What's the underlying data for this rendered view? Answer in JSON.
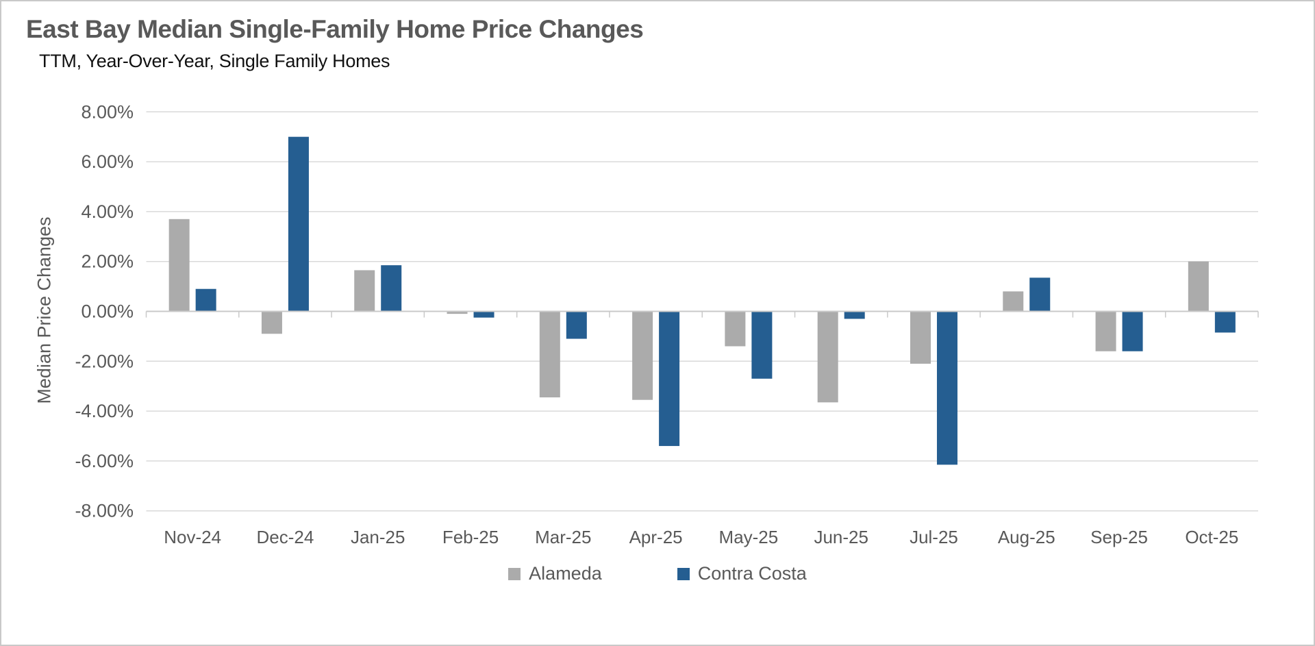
{
  "title": "East Bay Median Single-Family Home Price Changes",
  "subtitle": "TTM, Year-Over-Year, Single Family Homes",
  "chart_data": {
    "type": "bar",
    "title": "East Bay Median Single-Family Home Price Changes",
    "subtitle": "TTM, Year-Over-Year, Single Family Homes",
    "xlabel": "",
    "ylabel": "Median Price Changes",
    "ylim": [
      -8,
      8
    ],
    "grid": "horizontal",
    "legend_position": "bottom",
    "y_ticks": [
      {
        "value": 8,
        "label": "8.00%"
      },
      {
        "value": 6,
        "label": "6.00%"
      },
      {
        "value": 4,
        "label": "4.00%"
      },
      {
        "value": 2,
        "label": "2.00%"
      },
      {
        "value": 0,
        "label": "0.00%"
      },
      {
        "value": -2,
        "label": "-2.00%"
      },
      {
        "value": -4,
        "label": "-4.00%"
      },
      {
        "value": -6,
        "label": "-6.00%"
      },
      {
        "value": -8,
        "label": "-8.00%"
      }
    ],
    "categories": [
      "Nov-24",
      "Dec-24",
      "Jan-25",
      "Feb-25",
      "Mar-25",
      "Apr-25",
      "May-25",
      "Jun-25",
      "Jul-25",
      "Aug-25",
      "Sep-25",
      "Oct-25"
    ],
    "series": [
      {
        "name": "Alameda",
        "color": "#ABABAB",
        "values": [
          3.7,
          -0.9,
          1.65,
          -0.1,
          -3.45,
          -3.55,
          -1.4,
          -3.65,
          -2.1,
          0.8,
          -1.6,
          2.0
        ]
      },
      {
        "name": "Contra Costa",
        "color": "#255E91",
        "values": [
          0.9,
          7.0,
          1.85,
          -0.25,
          -1.1,
          -5.4,
          -2.7,
          -0.3,
          -6.15,
          1.35,
          -1.6,
          -0.85
        ]
      }
    ]
  },
  "colors": {
    "background": "#FFFFFF",
    "border": "#C9C9C9",
    "gridline": "#D9D9D9",
    "axis_line": "#C9C9C9",
    "tick_text": "#595959",
    "title_text": "#595959",
    "subtitle_text": "#111111",
    "alameda": "#ABABAB",
    "contra_costa": "#255E91"
  }
}
